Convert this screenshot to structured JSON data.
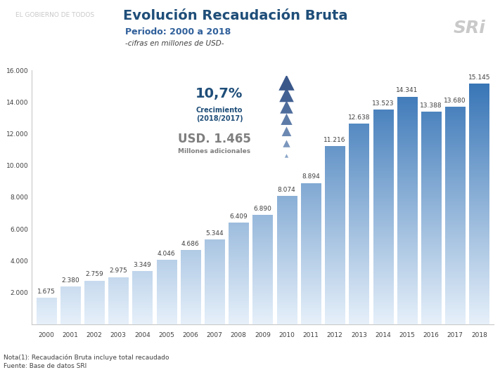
{
  "chart_data": {
    "type": "bar",
    "title": "Evolución Recaudación Bruta",
    "subtitle": "Periodo: 2000 a 2018",
    "annotations": [
      "-cifras en millones de USD-",
      "10,7%",
      "Crecimiento",
      "(2018/2017)",
      "USD. 1.465",
      "Millones adicionales",
      "Nota(1): Recaudación Bruta incluye total recaudado",
      "Fuente: Base de datos SRI",
      "SRi",
      "EL GOBIERNO DE TODOS"
    ],
    "categories": [
      "2000",
      "2001",
      "2002",
      "2003",
      "2004",
      "2005",
      "2006",
      "2007",
      "2008",
      "2009",
      "2010",
      "2011",
      "2012",
      "2013",
      "2014",
      "2015",
      "2016",
      "2017",
      "2018"
    ],
    "values": [
      1675,
      2380,
      2759,
      2975,
      3349,
      4046,
      4686,
      5344,
      6409,
      6890,
      8074,
      8894,
      11216,
      12638,
      13523,
      14341,
      13388,
      13680,
      15145
    ],
    "value_labels": [
      "1.675",
      "2.380",
      "2.759",
      "2.975",
      "3.349",
      "4.046",
      "4.686",
      "5.344",
      "6.409",
      "6.890",
      "8.074",
      "8.894",
      "11.216",
      "12.638",
      "13.523",
      "14.341",
      "13.388",
      "13.680",
      "15.145"
    ],
    "data_labels": true,
    "color": "#2f6fb3",
    "ylim": [
      0,
      16000
    ],
    "yticks": [
      {
        "value": 2000,
        "label": "2.000"
      },
      {
        "value": 4000,
        "label": "4.000"
      },
      {
        "value": 6000,
        "label": "6.000"
      },
      {
        "value": 8000,
        "label": "8.000"
      },
      {
        "value": 10000,
        "label": "10.000"
      },
      {
        "value": 12000,
        "label": "12.000"
      },
      {
        "value": 14000,
        "label": "14.000"
      },
      {
        "value": 16000,
        "label": "16.000"
      }
    ],
    "grid": false
  }
}
